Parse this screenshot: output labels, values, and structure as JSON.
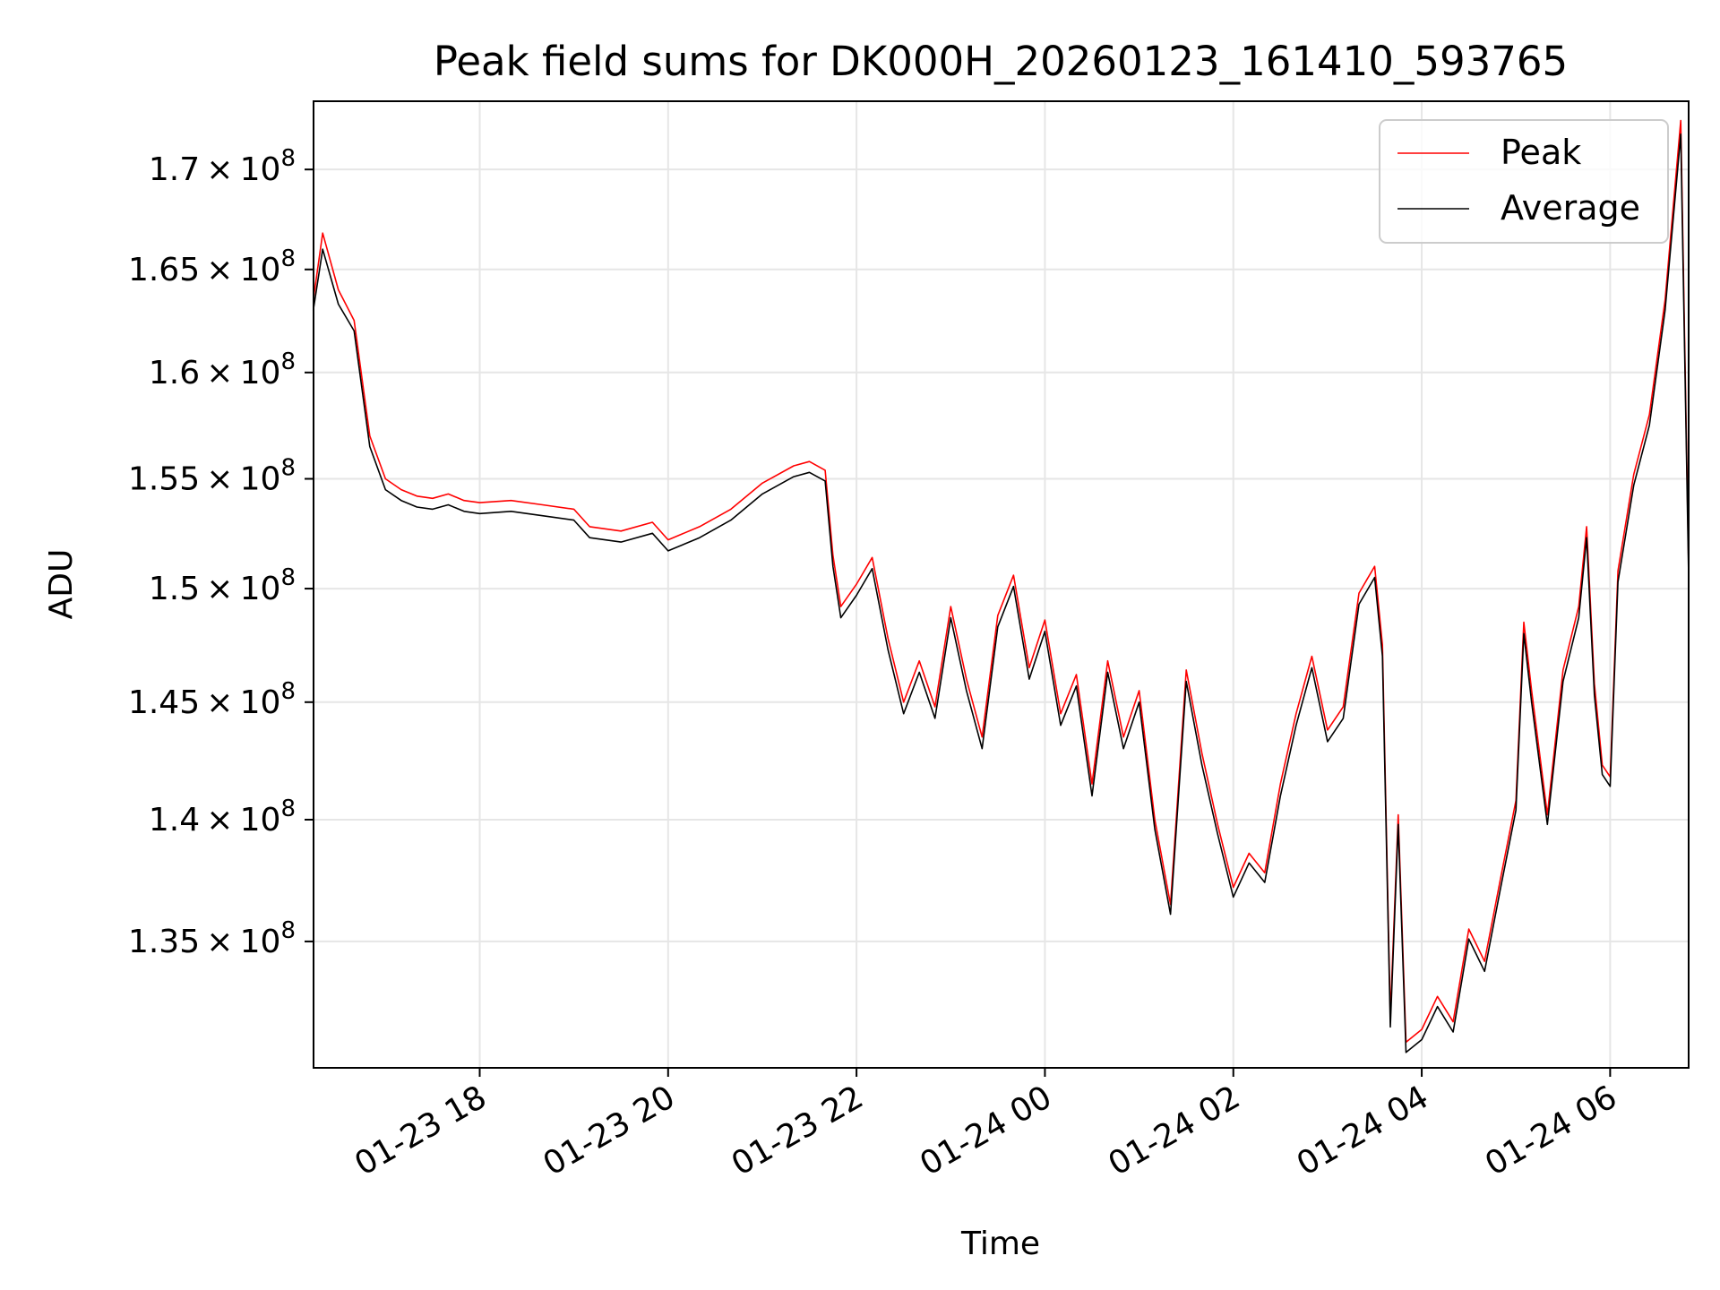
{
  "chart_data": {
    "type": "line",
    "title": "Peak field sums for DK000H_20260123_161410_593765",
    "xlabel": "Time",
    "ylabel": "ADU",
    "x_axis": {
      "type": "datetime",
      "range": [
        "2026-01-23T16:14:10",
        "2026-01-24T06:50:00"
      ],
      "ticks": [
        {
          "time": "2026-01-23T18:00",
          "label": "01-23 18"
        },
        {
          "time": "2026-01-23T20:00",
          "label": "01-23 20"
        },
        {
          "time": "2026-01-23T22:00",
          "label": "01-23 22"
        },
        {
          "time": "2026-01-24T00:00",
          "label": "01-24 00"
        },
        {
          "time": "2026-01-24T02:00",
          "label": "01-24 02"
        },
        {
          "time": "2026-01-24T04:00",
          "label": "01-24 04"
        },
        {
          "time": "2026-01-24T06:00",
          "label": "01-24 06"
        }
      ]
    },
    "y_axis": {
      "scale": "log",
      "range": [
        130000000,
        173500000
      ],
      "ticks": [
        {
          "value": 135000000,
          "mantissa": "1.35",
          "base": "10",
          "exp": "8"
        },
        {
          "value": 140000000,
          "mantissa": "1.4",
          "base": "10",
          "exp": "8"
        },
        {
          "value": 145000000,
          "mantissa": "1.45",
          "base": "10",
          "exp": "8"
        },
        {
          "value": 150000000,
          "mantissa": "1.5",
          "base": "10",
          "exp": "8"
        },
        {
          "value": 155000000,
          "mantissa": "1.55",
          "base": "10",
          "exp": "8"
        },
        {
          "value": 160000000,
          "mantissa": "1.6",
          "base": "10",
          "exp": "8"
        },
        {
          "value": 165000000,
          "mantissa": "1.65",
          "base": "10",
          "exp": "8"
        },
        {
          "value": 170000000,
          "mantissa": "1.7",
          "base": "10",
          "exp": "8"
        }
      ]
    },
    "grid": true,
    "legend": {
      "placement": "top-right",
      "entries": [
        {
          "name": "Peak",
          "color": "#ff0000"
        },
        {
          "name": "Average",
          "color": "#000000"
        }
      ]
    },
    "series": [
      {
        "name": "Peak",
        "color": "#ff0000",
        "values": [
          [
            "2026-01-23T16:14",
            163500000
          ],
          [
            "2026-01-23T16:20",
            166800000
          ],
          [
            "2026-01-23T16:30",
            164000000
          ],
          [
            "2026-01-23T16:40",
            162500000
          ],
          [
            "2026-01-23T16:50",
            157000000
          ],
          [
            "2026-01-23T17:00",
            155000000
          ],
          [
            "2026-01-23T17:10",
            154500000
          ],
          [
            "2026-01-23T17:20",
            154200000
          ],
          [
            "2026-01-23T17:30",
            154100000
          ],
          [
            "2026-01-23T17:40",
            154300000
          ],
          [
            "2026-01-23T17:50",
            154000000
          ],
          [
            "2026-01-23T18:00",
            153900000
          ],
          [
            "2026-01-23T18:20",
            154000000
          ],
          [
            "2026-01-23T18:40",
            153800000
          ],
          [
            "2026-01-23T19:00",
            153600000
          ],
          [
            "2026-01-23T19:10",
            152800000
          ],
          [
            "2026-01-23T19:30",
            152600000
          ],
          [
            "2026-01-23T19:50",
            153000000
          ],
          [
            "2026-01-23T20:00",
            152200000
          ],
          [
            "2026-01-23T20:20",
            152800000
          ],
          [
            "2026-01-23T20:40",
            153600000
          ],
          [
            "2026-01-23T21:00",
            154800000
          ],
          [
            "2026-01-23T21:20",
            155600000
          ],
          [
            "2026-01-23T21:30",
            155800000
          ],
          [
            "2026-01-23T21:40",
            155400000
          ],
          [
            "2026-01-23T21:45",
            151500000
          ],
          [
            "2026-01-23T21:50",
            149200000
          ],
          [
            "2026-01-23T22:00",
            150200000
          ],
          [
            "2026-01-23T22:10",
            151400000
          ],
          [
            "2026-01-23T22:20",
            147800000
          ],
          [
            "2026-01-23T22:30",
            145000000
          ],
          [
            "2026-01-23T22:40",
            146800000
          ],
          [
            "2026-01-23T22:50",
            144800000
          ],
          [
            "2026-01-23T23:00",
            149200000
          ],
          [
            "2026-01-23T23:10",
            146000000
          ],
          [
            "2026-01-23T23:20",
            143500000
          ],
          [
            "2026-01-23T23:30",
            148800000
          ],
          [
            "2026-01-23T23:40",
            150600000
          ],
          [
            "2026-01-23T23:50",
            146500000
          ],
          [
            "2026-01-24T00:00",
            148600000
          ],
          [
            "2026-01-24T00:10",
            144500000
          ],
          [
            "2026-01-24T00:20",
            146200000
          ],
          [
            "2026-01-24T00:30",
            141500000
          ],
          [
            "2026-01-24T00:40",
            146800000
          ],
          [
            "2026-01-24T00:50",
            143500000
          ],
          [
            "2026-01-24T01:00",
            145500000
          ],
          [
            "2026-01-24T01:10",
            140000000
          ],
          [
            "2026-01-24T01:20",
            136500000
          ],
          [
            "2026-01-24T01:30",
            146400000
          ],
          [
            "2026-01-24T01:40",
            142800000
          ],
          [
            "2026-01-24T01:50",
            139800000
          ],
          [
            "2026-01-24T02:00",
            137200000
          ],
          [
            "2026-01-24T02:10",
            138600000
          ],
          [
            "2026-01-24T02:20",
            137800000
          ],
          [
            "2026-01-24T02:30",
            141500000
          ],
          [
            "2026-01-24T02:40",
            144500000
          ],
          [
            "2026-01-24T02:50",
            147000000
          ],
          [
            "2026-01-24T03:00",
            143800000
          ],
          [
            "2026-01-24T03:10",
            144800000
          ],
          [
            "2026-01-24T03:20",
            149800000
          ],
          [
            "2026-01-24T03:30",
            151000000
          ],
          [
            "2026-01-24T03:35",
            147500000
          ],
          [
            "2026-01-24T03:40",
            132000000
          ],
          [
            "2026-01-24T03:45",
            140200000
          ],
          [
            "2026-01-24T03:50",
            131000000
          ],
          [
            "2026-01-24T04:00",
            131500000
          ],
          [
            "2026-01-24T04:10",
            132800000
          ],
          [
            "2026-01-24T04:20",
            131800000
          ],
          [
            "2026-01-24T04:30",
            135500000
          ],
          [
            "2026-01-24T04:40",
            134200000
          ],
          [
            "2026-01-24T04:50",
            137500000
          ],
          [
            "2026-01-24T05:00",
            140800000
          ],
          [
            "2026-01-24T05:05",
            148500000
          ],
          [
            "2026-01-24T05:10",
            145500000
          ],
          [
            "2026-01-24T05:20",
            140200000
          ],
          [
            "2026-01-24T05:30",
            146400000
          ],
          [
            "2026-01-24T05:40",
            149200000
          ],
          [
            "2026-01-24T05:45",
            152800000
          ],
          [
            "2026-01-24T05:50",
            145800000
          ],
          [
            "2026-01-24T05:55",
            142300000
          ],
          [
            "2026-01-24T06:00",
            141800000
          ],
          [
            "2026-01-24T06:05",
            150800000
          ],
          [
            "2026-01-24T06:15",
            155200000
          ],
          [
            "2026-01-24T06:25",
            158000000
          ],
          [
            "2026-01-24T06:35",
            163500000
          ],
          [
            "2026-01-24T06:45",
            172500000
          ],
          [
            "2026-01-24T06:50",
            151000000
          ]
        ]
      },
      {
        "name": "Average",
        "color": "#000000",
        "values": [
          [
            "2026-01-23T16:14",
            163000000
          ],
          [
            "2026-01-23T16:20",
            166000000
          ],
          [
            "2026-01-23T16:30",
            163300000
          ],
          [
            "2026-01-23T16:40",
            162000000
          ],
          [
            "2026-01-23T16:50",
            156500000
          ],
          [
            "2026-01-23T17:00",
            154500000
          ],
          [
            "2026-01-23T17:10",
            154000000
          ],
          [
            "2026-01-23T17:20",
            153700000
          ],
          [
            "2026-01-23T17:30",
            153600000
          ],
          [
            "2026-01-23T17:40",
            153800000
          ],
          [
            "2026-01-23T17:50",
            153500000
          ],
          [
            "2026-01-23T18:00",
            153400000
          ],
          [
            "2026-01-23T18:20",
            153500000
          ],
          [
            "2026-01-23T18:40",
            153300000
          ],
          [
            "2026-01-23T19:00",
            153100000
          ],
          [
            "2026-01-23T19:10",
            152300000
          ],
          [
            "2026-01-23T19:30",
            152100000
          ],
          [
            "2026-01-23T19:50",
            152500000
          ],
          [
            "2026-01-23T20:00",
            151700000
          ],
          [
            "2026-01-23T20:20",
            152300000
          ],
          [
            "2026-01-23T20:40",
            153100000
          ],
          [
            "2026-01-23T21:00",
            154300000
          ],
          [
            "2026-01-23T21:20",
            155100000
          ],
          [
            "2026-01-23T21:30",
            155300000
          ],
          [
            "2026-01-23T21:40",
            154900000
          ],
          [
            "2026-01-23T21:45",
            151000000
          ],
          [
            "2026-01-23T21:50",
            148700000
          ],
          [
            "2026-01-23T22:00",
            149700000
          ],
          [
            "2026-01-23T22:10",
            150900000
          ],
          [
            "2026-01-23T22:20",
            147300000
          ],
          [
            "2026-01-23T22:30",
            144500000
          ],
          [
            "2026-01-23T22:40",
            146300000
          ],
          [
            "2026-01-23T22:50",
            144300000
          ],
          [
            "2026-01-23T23:00",
            148700000
          ],
          [
            "2026-01-23T23:10",
            145500000
          ],
          [
            "2026-01-23T23:20",
            143000000
          ],
          [
            "2026-01-23T23:30",
            148300000
          ],
          [
            "2026-01-23T23:40",
            150100000
          ],
          [
            "2026-01-23T23:50",
            146000000
          ],
          [
            "2026-01-24T00:00",
            148100000
          ],
          [
            "2026-01-24T00:10",
            144000000
          ],
          [
            "2026-01-24T00:20",
            145700000
          ],
          [
            "2026-01-24T00:30",
            141000000
          ],
          [
            "2026-01-24T00:40",
            146300000
          ],
          [
            "2026-01-24T00:50",
            143000000
          ],
          [
            "2026-01-24T01:00",
            145000000
          ],
          [
            "2026-01-24T01:10",
            139600000
          ],
          [
            "2026-01-24T01:20",
            136100000
          ],
          [
            "2026-01-24T01:30",
            145900000
          ],
          [
            "2026-01-24T01:40",
            142300000
          ],
          [
            "2026-01-24T01:50",
            139400000
          ],
          [
            "2026-01-24T02:00",
            136800000
          ],
          [
            "2026-01-24T02:10",
            138200000
          ],
          [
            "2026-01-24T02:20",
            137400000
          ],
          [
            "2026-01-24T02:30",
            141000000
          ],
          [
            "2026-01-24T02:40",
            144000000
          ],
          [
            "2026-01-24T02:50",
            146500000
          ],
          [
            "2026-01-24T03:00",
            143300000
          ],
          [
            "2026-01-24T03:10",
            144300000
          ],
          [
            "2026-01-24T03:20",
            149300000
          ],
          [
            "2026-01-24T03:30",
            150500000
          ],
          [
            "2026-01-24T03:35",
            147000000
          ],
          [
            "2026-01-24T03:40",
            131600000
          ],
          [
            "2026-01-24T03:45",
            139800000
          ],
          [
            "2026-01-24T03:50",
            130600000
          ],
          [
            "2026-01-24T04:00",
            131100000
          ],
          [
            "2026-01-24T04:10",
            132400000
          ],
          [
            "2026-01-24T04:20",
            131400000
          ],
          [
            "2026-01-24T04:30",
            135100000
          ],
          [
            "2026-01-24T04:40",
            133800000
          ],
          [
            "2026-01-24T04:50",
            137100000
          ],
          [
            "2026-01-24T05:00",
            140400000
          ],
          [
            "2026-01-24T05:05",
            148000000
          ],
          [
            "2026-01-24T05:10",
            145000000
          ],
          [
            "2026-01-24T05:20",
            139800000
          ],
          [
            "2026-01-24T05:30",
            145900000
          ],
          [
            "2026-01-24T05:40",
            148700000
          ],
          [
            "2026-01-24T05:45",
            152300000
          ],
          [
            "2026-01-24T05:50",
            145300000
          ],
          [
            "2026-01-24T05:55",
            141900000
          ],
          [
            "2026-01-24T06:00",
            141400000
          ],
          [
            "2026-01-24T06:05",
            150300000
          ],
          [
            "2026-01-24T06:15",
            154700000
          ],
          [
            "2026-01-24T06:25",
            157500000
          ],
          [
            "2026-01-24T06:35",
            163000000
          ],
          [
            "2026-01-24T06:45",
            171800000
          ],
          [
            "2026-01-24T06:50",
            150500000
          ]
        ]
      }
    ]
  }
}
